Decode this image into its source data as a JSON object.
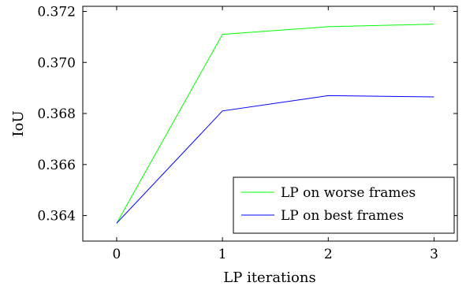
{
  "chart_data": {
    "type": "line",
    "xlabel": "LP iterations",
    "ylabel": "IoU",
    "x": [
      0,
      1,
      2,
      3
    ],
    "xticks": [
      "0",
      "1",
      "2",
      "3"
    ],
    "yticks": [
      "0.364",
      "0.366",
      "0.368",
      "0.370",
      "0.372"
    ],
    "xlim": [
      -0.32,
      3.22
    ],
    "ylim": [
      0.363,
      0.3722
    ],
    "grid": false,
    "legend_position": "lower-right",
    "series": [
      {
        "name": "LP on worse frames",
        "color": "#00ff00",
        "values": [
          0.3637,
          0.3711,
          0.3714,
          0.3715
        ]
      },
      {
        "name": "LP on best frames",
        "color": "#0000ff",
        "values": [
          0.3637,
          0.3681,
          0.3687,
          0.36865
        ]
      }
    ]
  }
}
